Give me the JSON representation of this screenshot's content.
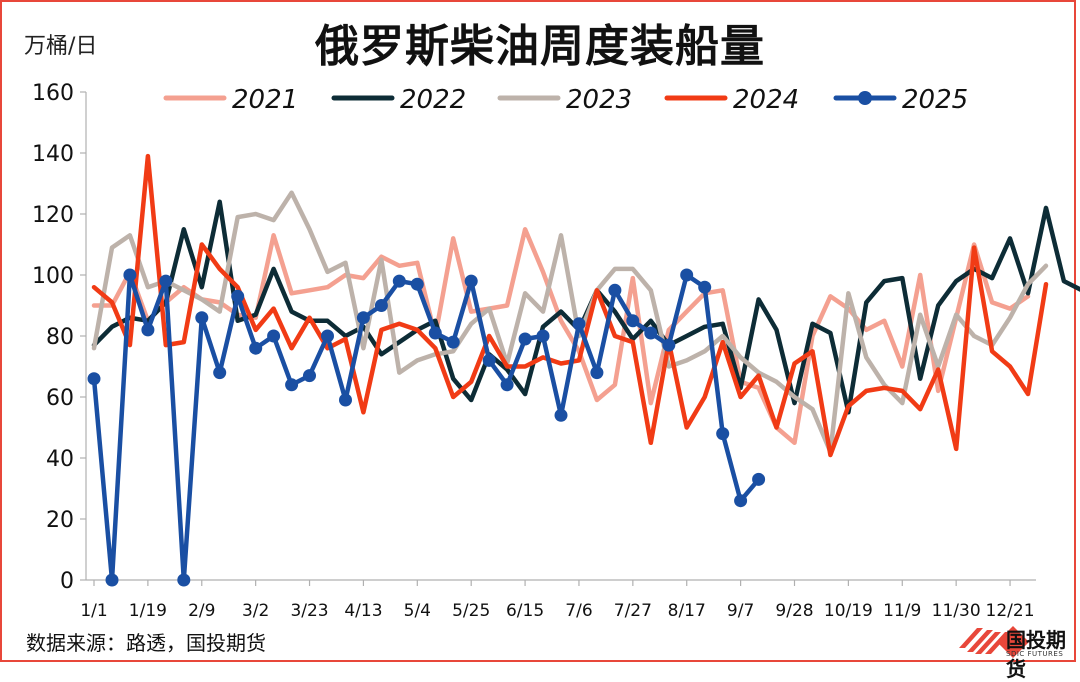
{
  "header": {
    "title": "俄罗斯柴油周度装船量",
    "unit": "万桶/日"
  },
  "footer": {
    "source": "数据来源：路透，国投期货",
    "brand_name": "国投期货",
    "brand_sub": "SDIC FUTURES"
  },
  "colors": {
    "2021": "#f4a090",
    "2022": "#0d2c36",
    "2023": "#bdb2aa",
    "2024": "#f13b15",
    "2025": "#1a4fa3",
    "frame": "#e8473a"
  },
  "chart_data": {
    "type": "line",
    "title": "俄罗斯柴油周度装船量",
    "ylabel": "万桶/日",
    "xlabel": "",
    "ylim": [
      0,
      160
    ],
    "yticks": [
      0,
      20,
      40,
      60,
      80,
      100,
      120,
      140,
      160
    ],
    "xtick_labels": [
      "1/1",
      "1/19",
      "2/9",
      "3/2",
      "3/23",
      "4/13",
      "5/4",
      "5/25",
      "6/15",
      "7/6",
      "7/27",
      "8/17",
      "9/7",
      "9/28",
      "10/19",
      "11/9",
      "11/30",
      "12/21"
    ],
    "legend_position": "top",
    "series": [
      {
        "name": "2021",
        "markers": false,
        "values": [
          90,
          90,
          101,
          85,
          91,
          96,
          92,
          91,
          87,
          86,
          113,
          94,
          95,
          96,
          100,
          99,
          106,
          103,
          104,
          80,
          112,
          88,
          89,
          90,
          115,
          101,
          85,
          75,
          59,
          64,
          99,
          58,
          82,
          88,
          94,
          95,
          65,
          63,
          50,
          45,
          80,
          93,
          89,
          82,
          85,
          70,
          100,
          62,
          86,
          110,
          91,
          89,
          93
        ]
      },
      {
        "name": "2022",
        "markers": false,
        "values": [
          77,
          83,
          86,
          85,
          91,
          115,
          96,
          124,
          85,
          87,
          102,
          88,
          85,
          85,
          80,
          83,
          74,
          78,
          82,
          85,
          66,
          59,
          74,
          69,
          61,
          83,
          88,
          82,
          95,
          88,
          79,
          85,
          77,
          80,
          83,
          84,
          63,
          92,
          82,
          58,
          84,
          81,
          55,
          91,
          98,
          99,
          66,
          90,
          98,
          102,
          99,
          112,
          94,
          122,
          98,
          95
        ]
      },
      {
        "name": "2023",
        "markers": false,
        "values": [
          76,
          109,
          113,
          96,
          98,
          95,
          92,
          88,
          119,
          120,
          118,
          127,
          115,
          101,
          104,
          76,
          105,
          68,
          72,
          74,
          75,
          84,
          89,
          71,
          94,
          88,
          113,
          80,
          95,
          102,
          102,
          95,
          70,
          72,
          75,
          80,
          73,
          68,
          65,
          60,
          56,
          42,
          94,
          73,
          64,
          58,
          87,
          70,
          87,
          80,
          77,
          86,
          97,
          103
        ]
      },
      {
        "name": "2024",
        "markers": false,
        "values": [
          96,
          91,
          77,
          139,
          77,
          78,
          110,
          102,
          96,
          82,
          89,
          76,
          86,
          76,
          79,
          55,
          82,
          84,
          82,
          76,
          60,
          65,
          80,
          70,
          70,
          73,
          71,
          72,
          95,
          80,
          78,
          45,
          78,
          50,
          60,
          78,
          60,
          67,
          50,
          71,
          75,
          41,
          57,
          62,
          63,
          62,
          56,
          69,
          43,
          109,
          75,
          70,
          61,
          97
        ]
      },
      {
        "name": "2025",
        "markers": true,
        "values": [
          66,
          0,
          100,
          82,
          98,
          0,
          86,
          68,
          93,
          76,
          80,
          64,
          67,
          80,
          59,
          86,
          90,
          98,
          97,
          81,
          78,
          98,
          72,
          64,
          79,
          80,
          54,
          84,
          68,
          95,
          85,
          81,
          77,
          100,
          96,
          48,
          26,
          33
        ]
      }
    ]
  }
}
